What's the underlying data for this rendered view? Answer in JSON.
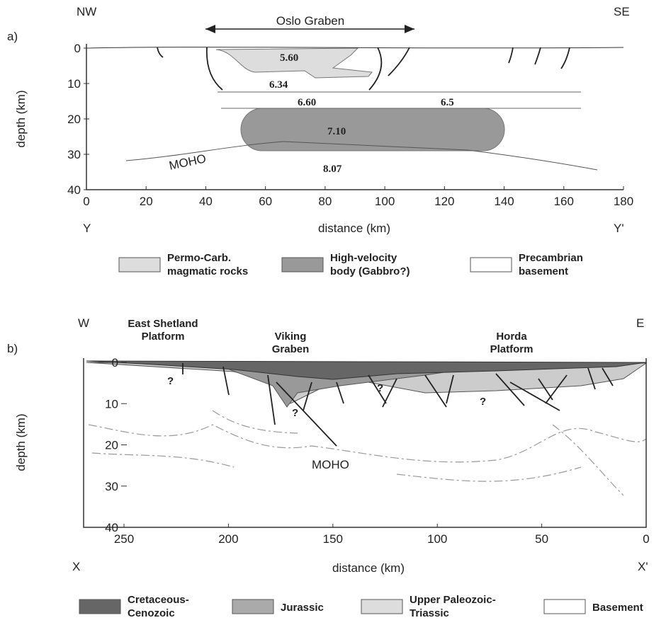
{
  "panel_a": {
    "label": "a)",
    "left_direction": "NW",
    "right_direction": "SE",
    "graben": "Oslo Graben",
    "y_axis": "depth (km)",
    "x_axis": "distance (km)",
    "left_end": "Y",
    "right_end": "Y'",
    "x_ticks": [
      0,
      20,
      40,
      60,
      80,
      100,
      120,
      140,
      160,
      180
    ],
    "y_ticks": [
      0,
      10,
      20,
      30,
      40
    ],
    "velocities": [
      "5.60",
      "6.34",
      "6.60",
      "6.5",
      "7.10",
      "8.07"
    ],
    "moho": "MOHO",
    "legend": [
      [
        "Permo-Carb.",
        "magmatic rocks"
      ],
      [
        "High-velocity",
        "body (Gabbro?)"
      ],
      [
        "Precambrian",
        "basement"
      ]
    ]
  },
  "panel_b": {
    "label": "b)",
    "left_direction": "W",
    "right_direction": "E",
    "regions": [
      [
        "East Shetland",
        "Platform"
      ],
      [
        "Viking",
        "Graben"
      ],
      [
        "Horda",
        "Platform"
      ]
    ],
    "y_axis": "depth (km)",
    "x_axis": "distance (km)",
    "left_end": "X",
    "right_end": "X'",
    "x_ticks": [
      250,
      200,
      150,
      100,
      50,
      0
    ],
    "y_ticks": [
      0,
      10,
      20,
      30,
      40
    ],
    "question_marks": [
      "?",
      "?",
      "?",
      "?"
    ],
    "moho": "MOHO",
    "legend": [
      [
        "Cretaceous-",
        "Cenozoic"
      ],
      [
        "Jurassic"
      ],
      [
        "Upper Paleozoic-",
        "Triassic"
      ],
      [
        "Basement"
      ]
    ]
  }
}
